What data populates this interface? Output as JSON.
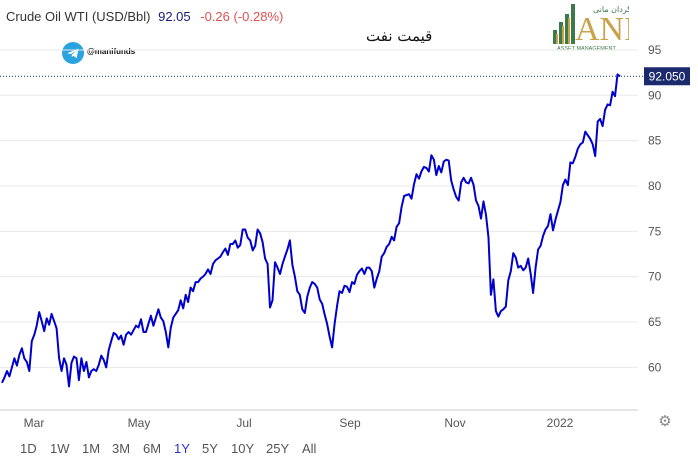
{
  "header": {
    "symbol": "Crude Oil WTI (USD/Bbl)",
    "price": "92.05",
    "change": "-0.26 (-0.28%)"
  },
  "watermark": {
    "telegram_handle": "@manifunds",
    "title_fa": "قیمت نفت",
    "logo_brand": "ANI",
    "logo_fa": "سبدگردان مانی",
    "logo_sub": "ASSET MANAGEMENT"
  },
  "ranges": {
    "items": [
      "1D",
      "1W",
      "1M",
      "3M",
      "6M",
      "1Y",
      "5Y",
      "10Y",
      "25Y",
      "All"
    ],
    "active": "1Y"
  },
  "colors": {
    "line": "#0000cc",
    "price_tag_bg": "#1a2a6c",
    "grid": "#e8e8e8",
    "active_range": "#2f2fd6"
  },
  "chart_data": {
    "type": "line",
    "x_labels": [
      "Mar",
      "May",
      "Jul",
      "Sep",
      "Nov",
      "2022"
    ],
    "y_ticks": [
      60,
      65,
      70,
      75,
      80,
      85,
      90,
      95
    ],
    "ylim": [
      55.3,
      97.2
    ],
    "last_value_label": "92.050",
    "series": [
      {
        "values": [
          58.3,
          58.9,
          59.6,
          59.0,
          60.0,
          61.0,
          60.2,
          61.4,
          62.1,
          61.0,
          60.6,
          59.6,
          62.9,
          63.6,
          64.6,
          66.1,
          65.1,
          64.0,
          65.4,
          64.7,
          65.9,
          65.1,
          64.3,
          61.0,
          59.6,
          61.0,
          60.3,
          57.9,
          60.5,
          61.2,
          61.0,
          58.6,
          61.0,
          59.6,
          60.6,
          58.9,
          59.6,
          59.8,
          59.6,
          60.3,
          61.3,
          60.8,
          60.0,
          61.9,
          62.9,
          63.8,
          63.6,
          63.1,
          63.5,
          62.5,
          63.6,
          63.9,
          63.6,
          64.1,
          64.6,
          64.4,
          65.3,
          63.9,
          63.9,
          64.8,
          65.7,
          64.6,
          65.5,
          66.4,
          65.5,
          65.1,
          63.9,
          62.2,
          64.4,
          65.5,
          65.9,
          66.3,
          67.4,
          66.5,
          68.0,
          67.2,
          68.8,
          68.4,
          69.4,
          69.4,
          69.8,
          70.0,
          70.3,
          70.8,
          70.3,
          71.4,
          71.8,
          72.0,
          72.2,
          72.7,
          73.1,
          72.4,
          73.6,
          73.6,
          74.0,
          73.2,
          73.5,
          75.2,
          75.2,
          74.3,
          74.0,
          72.9,
          73.4,
          75.2,
          74.8,
          73.8,
          72.0,
          71.4,
          66.6,
          67.4,
          71.6,
          71.0,
          70.3,
          71.4,
          72.2,
          73.0,
          74.0,
          71.3,
          70.0,
          68.4,
          68.0,
          66.4,
          66.0,
          67.8,
          68.8,
          69.4,
          69.2,
          68.8,
          67.5,
          67.0,
          65.8,
          64.8,
          63.4,
          62.2,
          64.8,
          66.8,
          68.4,
          68.2,
          69.0,
          68.9,
          68.3,
          69.4,
          69.2,
          70.2,
          70.6,
          70.9,
          70.3,
          71.0,
          71.0,
          70.6,
          68.8,
          69.8,
          70.6,
          72.2,
          72.6,
          73.3,
          73.6,
          74.4,
          74.0,
          75.5,
          75.9,
          77.7,
          78.9,
          79.0,
          79.1,
          78.6,
          80.2,
          81.3,
          80.8,
          81.6,
          82.1,
          82.0,
          81.6,
          83.4,
          82.9,
          81.2,
          82.2,
          81.5,
          82.7,
          82.9,
          82.8,
          80.6,
          79.6,
          78.8,
          78.4,
          80.4,
          80.9,
          80.4,
          80.3,
          80.9,
          80.1,
          78.4,
          77.8,
          76.4,
          78.3,
          76.8,
          74.3,
          68.0,
          69.7,
          66.2,
          65.6,
          66.2,
          66.4,
          66.7,
          69.6,
          70.6,
          72.6,
          72.1,
          71.0,
          71.2,
          70.7,
          71.0,
          72.0,
          70.3,
          68.2,
          71.0,
          73.0,
          73.4,
          74.5,
          75.2,
          75.6,
          76.9,
          75.1,
          76.3,
          77.3,
          78.2,
          80.1,
          80.7,
          80.1,
          82.6,
          82.5,
          83.2,
          84.1,
          84.6,
          84.8,
          86.0,
          85.6,
          85.2,
          84.6,
          83.3,
          87.1,
          87.4,
          86.6,
          88.4,
          89.0,
          88.9,
          90.4,
          89.9,
          92.3,
          92.1
        ]
      }
    ]
  }
}
